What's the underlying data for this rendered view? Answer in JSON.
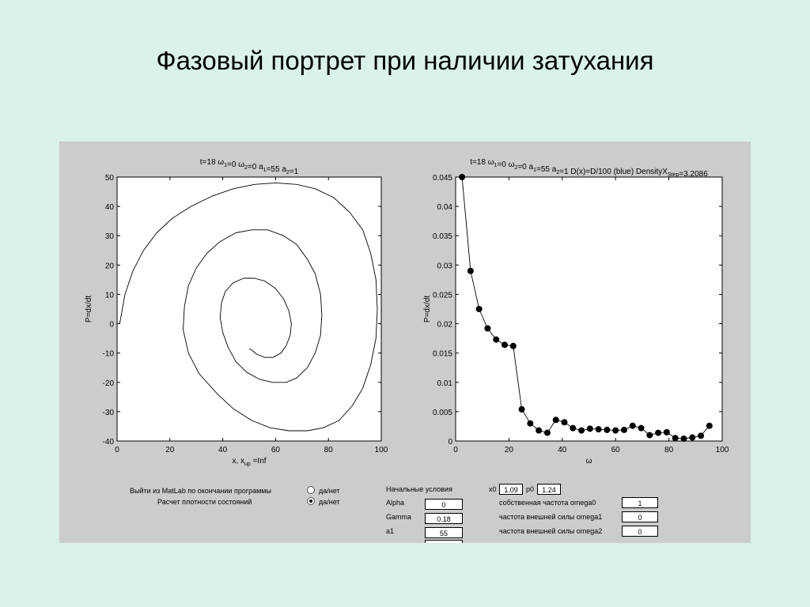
{
  "slide_title": "Фазовый портрет при наличии затухания",
  "chart_data": [
    {
      "type": "line",
      "title": "t=18 ω₁=0 ω₂=0 a₁=55 a₂=1",
      "title_parts": [
        {
          "text": "t=18 ω",
          "sub": "1"
        },
        {
          "text": "=0 ω",
          "sub": "2"
        },
        {
          "text": "=0 a",
          "sub": "1"
        },
        {
          "text": "=55 a",
          "sub": "2"
        },
        {
          "text": "=1",
          "sub": ""
        }
      ],
      "xlabel": "x, x",
      "xlabel_sub": "up",
      "xlabel_tail": " =Inf",
      "ylabel": "P=dx/dt",
      "xlim": [
        0,
        100
      ],
      "ylim": [
        -40,
        50
      ],
      "xticks": [
        0,
        20,
        40,
        60,
        80,
        100
      ],
      "yticks": [
        50,
        40,
        30,
        20,
        10,
        0,
        -10,
        -20,
        -30,
        -40
      ],
      "series": [
        {
          "x": [
            1,
            3,
            6,
            10,
            15,
            21,
            28,
            36,
            44,
            52,
            60,
            68,
            75,
            82,
            88,
            93,
            96,
            98,
            98.5,
            98,
            96,
            93,
            89,
            84,
            78,
            72,
            65,
            58,
            51,
            44,
            38,
            31,
            27,
            25,
            25.5,
            27,
            30,
            34,
            39,
            45,
            51,
            57,
            63,
            68,
            72,
            75,
            77,
            77.5,
            77,
            75,
            72,
            68,
            64,
            59,
            54,
            49,
            45,
            42,
            40,
            39,
            39.5,
            41,
            44,
            48,
            52,
            56,
            60,
            63,
            65,
            66,
            65.5,
            64,
            62,
            59,
            56,
            53,
            51,
            50
          ],
          "y": [
            0,
            10,
            18,
            25,
            31,
            36,
            40,
            43.5,
            46,
            47.5,
            48,
            47.5,
            46,
            43,
            38,
            32,
            24,
            15,
            5,
            -5,
            -14,
            -22,
            -28,
            -33,
            -35.5,
            -36.5,
            -36.5,
            -35.5,
            -33,
            -29,
            -24,
            -17,
            -10,
            -2,
            6,
            13,
            19,
            24,
            28,
            31,
            32,
            32,
            30,
            27,
            22,
            17,
            10,
            3,
            -4,
            -10,
            -15,
            -18.5,
            -20,
            -20,
            -19,
            -16.5,
            -13,
            -8,
            -3,
            2,
            7,
            11,
            14,
            15.5,
            15.5,
            14.5,
            12,
            8.5,
            4.5,
            0,
            -4,
            -7.5,
            -10,
            -11.5,
            -11.5,
            -10.5,
            -9,
            -8.5
          ]
        }
      ]
    },
    {
      "type": "line",
      "title": "t=18 ω₁=0 ω₂=0 a₁=55 a₂=1 D(x)=D/100 (blue) DensityX_Step=3.2086",
      "title_parts": [
        {
          "text": "t=18 ω",
          "sub": "1"
        },
        {
          "text": "=0 ω",
          "sub": "2"
        },
        {
          "text": "=0 a",
          "sub": "1"
        },
        {
          "text": "=55 a",
          "sub": "2"
        },
        {
          "text": "=1 D(x)=D/100 (blue) DensityX",
          "sub": "Step"
        },
        {
          "text": "=3.2086",
          "sub": ""
        }
      ],
      "xlabel": "ω",
      "ylabel": "P=dx/dt",
      "xlim": [
        0,
        100
      ],
      "ylim": [
        0,
        0.045
      ],
      "xticks": [
        0,
        20,
        40,
        60,
        80,
        100
      ],
      "yticks": [
        0.045,
        0.04,
        0.035,
        0.03,
        0.025,
        0.02,
        0.015,
        0.01,
        0.005,
        0
      ],
      "yticklabels": [
        "0.045",
        "0.04",
        "0.035",
        "0.03",
        "0.025",
        "0.02",
        "0.015",
        "0.01",
        "0.005",
        "0"
      ],
      "series": [
        {
          "marker": "filled-circle",
          "x": [
            2.4,
            5.6,
            8.8,
            12.0,
            15.2,
            18.4,
            21.6,
            24.8,
            28.0,
            31.2,
            34.4,
            37.6,
            40.8,
            44.0,
            47.2,
            50.4,
            53.6,
            56.8,
            60.0,
            63.2,
            66.4,
            69.6,
            72.8,
            76.0,
            79.2,
            82.4,
            85.6,
            88.8,
            92.0,
            95.2
          ],
          "y": [
            0.045,
            0.029,
            0.0225,
            0.0192,
            0.0173,
            0.0164,
            0.0162,
            0.0054,
            0.003,
            0.0018,
            0.0014,
            0.0036,
            0.0032,
            0.0022,
            0.0018,
            0.0021,
            0.002,
            0.0019,
            0.0018,
            0.0019,
            0.0026,
            0.0022,
            0.001,
            0.0014,
            0.0015,
            0.0005,
            0.0004,
            0.0006,
            0.0009,
            0.0026
          ]
        }
      ]
    }
  ],
  "controls": {
    "exit_matlab_label": "Выйти из MatLab по окончании программы",
    "exit_matlab_option": "да/нет",
    "exit_matlab_checked": false,
    "density_label": "Расчет плотности состояний",
    "density_option": "да/нет",
    "density_checked": true,
    "initial_conditions_label": "Начальные условия",
    "x0_label": "x0",
    "x0_value": "1.09",
    "p0_label": "p0",
    "p0_value": "1.24",
    "alpha_label": "Alpha",
    "alpha_value": "0",
    "gamma_label": "Gamma",
    "gamma_value": "0.18",
    "a1_label": "a1",
    "a1_value": "55",
    "omega0_label": "собственная частота omega0",
    "omega0_value": "1",
    "omega1_label": "частота внешней силы omega1",
    "omega1_value": "0",
    "omega2_label": "частота внешней силы omega2",
    "omega2_value": "0"
  }
}
